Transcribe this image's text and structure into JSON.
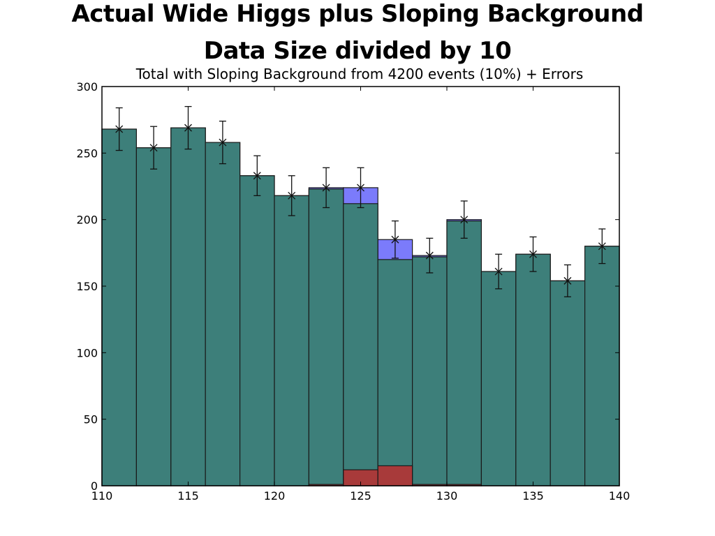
{
  "slide": {
    "title_line1": "Actual Wide Higgs plus Sloping Background",
    "title_line2": "Data Size divided by 10"
  },
  "colors": {
    "total": "#7b7bfb",
    "background": "#3d7f7a",
    "signal": "#a83a3a",
    "edge": "#1a1a1a"
  },
  "chart_data": {
    "type": "bar",
    "title": "Total with Sloping Background from 4200 events (10%) + Errors",
    "xlabel": "",
    "ylabel": "",
    "xlim": [
      110,
      140
    ],
    "ylim": [
      0,
      300
    ],
    "xticks": [
      110,
      115,
      120,
      125,
      130,
      135,
      140
    ],
    "yticks": [
      0,
      50,
      100,
      150,
      200,
      250,
      300
    ],
    "bin_edges": [
      110,
      112,
      114,
      116,
      118,
      120,
      122,
      124,
      126,
      128,
      130,
      132,
      134,
      136,
      138,
      140
    ],
    "series": [
      {
        "values": [
          268,
          254,
          269,
          258,
          233,
          218,
          224,
          224,
          185,
          173,
          200,
          161,
          174,
          154,
          180
        ]
      },
      {
        "values": [
          268,
          254,
          269,
          258,
          233,
          218,
          223,
          212,
          170,
          172,
          199,
          161,
          174,
          154,
          180
        ]
      },
      {
        "values": [
          0,
          0,
          0,
          0,
          0,
          0,
          1,
          12,
          15,
          1,
          1,
          0,
          0,
          0,
          0
        ]
      }
    ],
    "error_bars": {
      "x": [
        111,
        113,
        115,
        117,
        119,
        121,
        123,
        125,
        127,
        129,
        131,
        133,
        135,
        137,
        139
      ],
      "y": [
        268,
        254,
        269,
        258,
        233,
        218,
        224,
        224,
        185,
        173,
        200,
        161,
        174,
        154,
        180
      ],
      "err": [
        16,
        16,
        16,
        16,
        15,
        15,
        15,
        15,
        14,
        13,
        14,
        13,
        13,
        12,
        13
      ]
    }
  }
}
